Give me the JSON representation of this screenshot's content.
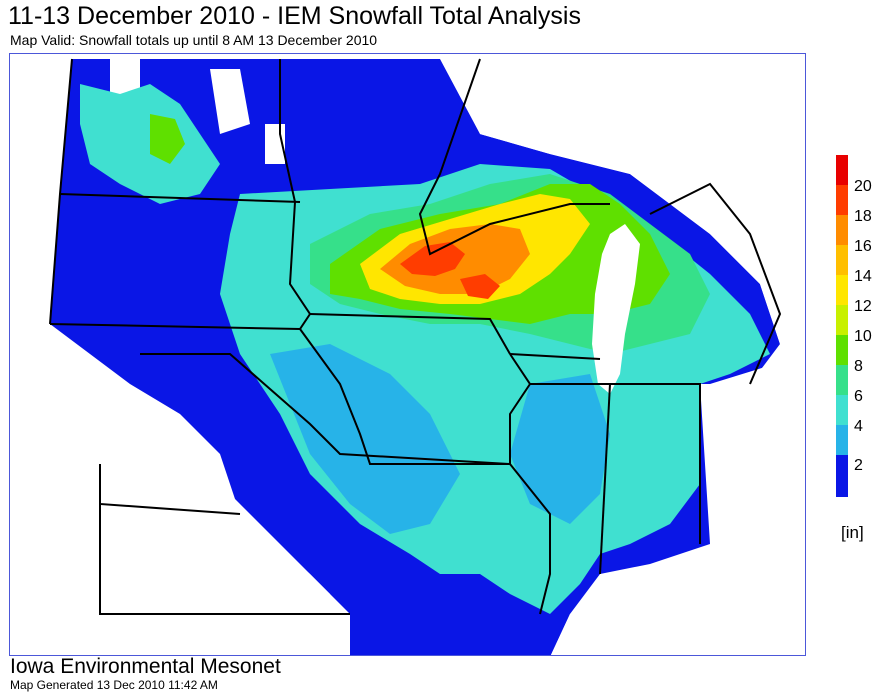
{
  "header": {
    "title": "11-13 December 2010 - IEM Snowfall Total Analysis",
    "subtitle": "Map Valid: Snowfall totals up until 8 AM 13 December 2010"
  },
  "legend": {
    "ticks": [
      "20",
      "18",
      "16",
      "14",
      "12",
      "10",
      "8",
      "6",
      "4",
      "2"
    ],
    "unit": "[in]",
    "colors": [
      "#e80000",
      "#ff3d00",
      "#ff8c00",
      "#ffbf00",
      "#ffe600",
      "#c8f000",
      "#5fe000",
      "#36e08a",
      "#40e0d0",
      "#27b3e8",
      "#0a16e6"
    ]
  },
  "map": {
    "colors": {
      "bg": "#ffffff",
      "blue": "#0a16e6",
      "light_blue": "#27b3e8",
      "cyan": "#40e0d0",
      "teal": "#36e08a",
      "green": "#5fe000",
      "yellow": "#ffe600",
      "orange": "#ff8c00",
      "red": "#ff3d00",
      "lake": "#ffffff"
    }
  },
  "footer": {
    "org": "Iowa Environmental Mesonet",
    "generated": "Map Generated 13 Dec 2010 11:42 AM"
  }
}
